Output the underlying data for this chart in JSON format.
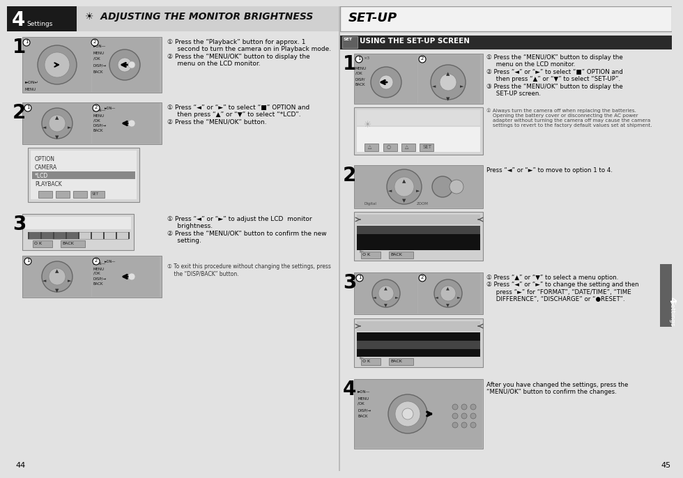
{
  "page_bg": "#e2e2e2",
  "left_header_bg": "#1a1a1a",
  "header_gray_bg": "#d0d0d0",
  "left_header_num": "4",
  "left_header_label": "Settings",
  "left_header_icon": "☀",
  "left_header_title": "ADJUSTING THE MONITOR BRIGHTNESS",
  "right_title": "SET-UP",
  "right_subtitle_bg": "#2a2a2a",
  "right_subtitle_text": "USING THE SET-UP SCREEN",
  "camera_bg": "#b8b8b8",
  "camera_dark": "#888888",
  "lcd_white": "#e8e8e8",
  "lcd_dark": "#1a1a1a",
  "lcd_gray": "#c0c0c0",
  "left_step1_text": "① Press the “Playback” button for approx. 1\n     second to turn the camera on in Playback mode.\n② Press the “MENU/OK” button to display the\n     menu on the LCD monitor.",
  "left_step2_text": "① Press “◄” or “►” to select “■” OPTION and\n     then press “▲” or “▼” to select “*LCD”.\n② Press the “MENU/OK” button.",
  "left_step3_text": "① Press “◄” or “►” to adjust the LCD  monitor\n     brightness.\n② Press the “MENU/OK” button to confirm the new\n     setting.",
  "left_step3_note": "① To exit this procedure without changing the settings, press\n    the “DISP/BACK” button.",
  "right_step1_text": "① Press the “MENU/OK” button to display the\n     menu on the LCD monitor.\n② Press “◄” or “►” to select “■” OPTION and\n     then press “▲” or “▼” to select “SET-UP”.\n③ Press the “MENU/OK” button to display the\n     SET-UP screen.",
  "right_step1_note": "① Always turn the camera off when replacing the batteries.\n    Opening the battery cover or disconnecting the AC power\n    adapter without turning the camera off may cause the camera\n    settings to revert to the factory default values set at shipment.",
  "right_step2_text": "Press “◄” or “►” to move to option 1 to 4.",
  "right_step3_text": "① Press “▲” or “▼” to select a menu option.\n② Press “◄” or “►” to change the setting and then\n     press “►” for “FORMAT”, “DATE/TIME”, “TIME\n     DIFFERENCE”, “DISCHARGE” or “●RESET”.",
  "right_step4_text": "After you have changed the settings, press the\n“MENU/OK” button to confirm the changes.",
  "page_left_num": "44",
  "page_right_num": "45",
  "tab_right_bg": "#606060",
  "tab_settings_label": "4",
  "tab_settings_text": "Settings"
}
